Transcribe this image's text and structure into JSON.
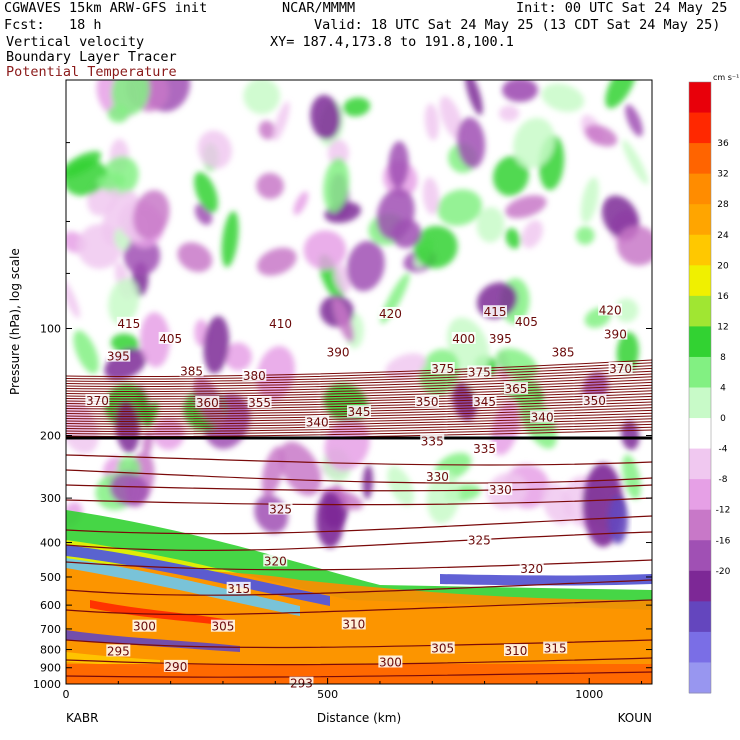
{
  "header": {
    "model_line": "CGWAVES 15km ARW-GFS init",
    "org": "NCAR/MMMM",
    "init": "Init: 00 UTC Sat 24 May 25",
    "fcst": "Fcst:   18 h",
    "valid": "Valid: 18 UTC Sat 24 May 25 (13 CDT Sat 24 May 25)",
    "field1": "Vertical velocity",
    "xy": "XY= 187.4,173.8 to 191.8,100.1",
    "field2": "Boundary Layer Tracer",
    "field3": "Potential Temperature"
  },
  "colorbar": {
    "unit": "cm s⁻¹",
    "levels": [
      36,
      32,
      28,
      24,
      20,
      16,
      12,
      8,
      4,
      0,
      -4,
      -8,
      -12,
      -16,
      -20
    ],
    "colors": [
      "#e8000a",
      "#ff2800",
      "#ff6400",
      "#ff8c00",
      "#ffa500",
      "#ffc800",
      "#f0f000",
      "#a0e632",
      "#32d232",
      "#82f082",
      "#c8fac8",
      "#ffffff",
      "#f0c8f0",
      "#e6a0e6",
      "#c878c8",
      "#a050b4",
      "#7d2896",
      "#6446be",
      "#7a6ee6",
      "#9896f0"
    ]
  },
  "chart_data": {
    "type": "heatmap",
    "title": "Vertical velocity / Boundary Layer Tracer / Potential Temperature",
    "xlabel": "Distance (km)",
    "ylabel": "Pressure (hPa), log scale",
    "x_ticks": [
      0,
      500,
      1000
    ],
    "xlim": [
      0,
      1120
    ],
    "y_ticks": [
      1000,
      900,
      800,
      700,
      600,
      500,
      400,
      300,
      200,
      100
    ],
    "ylim": [
      1000,
      20
    ],
    "y_scale": "log",
    "left_endpoint": "KABR",
    "right_endpoint": "KOUN",
    "theta_contour_labels": [
      {
        "x": 120,
        "p": 97,
        "v": "415"
      },
      {
        "x": 410,
        "p": 97,
        "v": "410"
      },
      {
        "x": 620,
        "p": 91,
        "v": "420"
      },
      {
        "x": 820,
        "p": 90,
        "v": "415"
      },
      {
        "x": 880,
        "p": 96,
        "v": "405"
      },
      {
        "x": 1040,
        "p": 89,
        "v": "420"
      },
      {
        "x": 200,
        "p": 107,
        "v": "405"
      },
      {
        "x": 760,
        "p": 107,
        "v": "400"
      },
      {
        "x": 830,
        "p": 107,
        "v": "395"
      },
      {
        "x": 1050,
        "p": 104,
        "v": "390"
      },
      {
        "x": 100,
        "p": 120,
        "v": "395"
      },
      {
        "x": 520,
        "p": 117,
        "v": "390"
      },
      {
        "x": 950,
        "p": 117,
        "v": "385"
      },
      {
        "x": 240,
        "p": 132,
        "v": "385"
      },
      {
        "x": 360,
        "p": 136,
        "v": "380"
      },
      {
        "x": 720,
        "p": 130,
        "v": "375"
      },
      {
        "x": 790,
        "p": 133,
        "v": "375"
      },
      {
        "x": 1060,
        "p": 130,
        "v": "370"
      },
      {
        "x": 60,
        "p": 160,
        "v": "370"
      },
      {
        "x": 270,
        "p": 162,
        "v": "360"
      },
      {
        "x": 370,
        "p": 162,
        "v": "355"
      },
      {
        "x": 860,
        "p": 148,
        "v": "365"
      },
      {
        "x": 690,
        "p": 161,
        "v": "350"
      },
      {
        "x": 800,
        "p": 161,
        "v": "345"
      },
      {
        "x": 1010,
        "p": 160,
        "v": "350"
      },
      {
        "x": 560,
        "p": 172,
        "v": "345"
      },
      {
        "x": 480,
        "p": 184,
        "v": "340"
      },
      {
        "x": 910,
        "p": 178,
        "v": "340"
      },
      {
        "x": 700,
        "p": 208,
        "v": "335"
      },
      {
        "x": 800,
        "p": 218,
        "v": "335"
      },
      {
        "x": 710,
        "p": 262,
        "v": "330"
      },
      {
        "x": 830,
        "p": 285,
        "v": "330"
      },
      {
        "x": 410,
        "p": 323,
        "v": "325"
      },
      {
        "x": 790,
        "p": 395,
        "v": "325"
      },
      {
        "x": 400,
        "p": 452,
        "v": "320"
      },
      {
        "x": 890,
        "p": 475,
        "v": "320"
      },
      {
        "x": 330,
        "p": 540,
        "v": "315"
      },
      {
        "x": 150,
        "p": 690,
        "v": "300"
      },
      {
        "x": 300,
        "p": 690,
        "v": "305"
      },
      {
        "x": 550,
        "p": 680,
        "v": "310"
      },
      {
        "x": 720,
        "p": 795,
        "v": "305"
      },
      {
        "x": 860,
        "p": 808,
        "v": "310"
      },
      {
        "x": 935,
        "p": 795,
        "v": "315"
      },
      {
        "x": 100,
        "p": 810,
        "v": "295"
      },
      {
        "x": 620,
        "p": 870,
        "v": "300"
      },
      {
        "x": 210,
        "p": 895,
        "v": "290"
      },
      {
        "x": 450,
        "p": 998,
        "v": "293"
      }
    ]
  }
}
